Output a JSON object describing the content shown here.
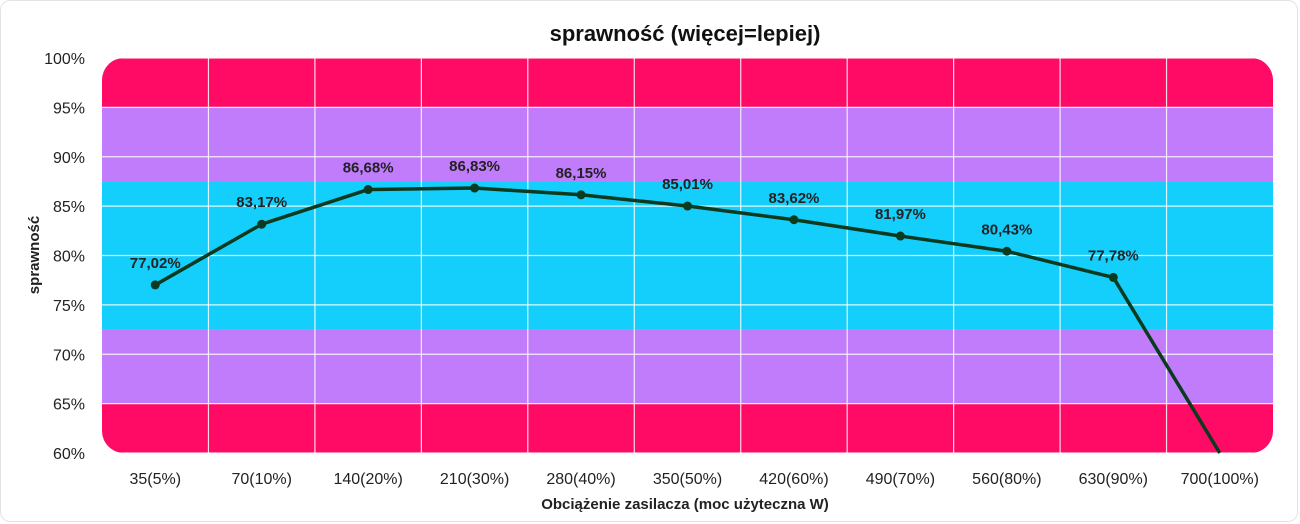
{
  "chart_data": {
    "type": "line",
    "title": "sprawność (więcej=lepiej)",
    "xlabel": "Obciążenie zasilacza (moc użyteczna W)",
    "ylabel": "sprawność",
    "categories": [
      "35(5%)",
      "70(10%)",
      "140(20%)",
      "210(30%)",
      "280(40%)",
      "350(50%)",
      "420(60%)",
      "490(70%)",
      "560(80%)",
      "630(90%)",
      "700(100%)"
    ],
    "series": [
      {
        "values": [
          77.02,
          83.17,
          86.68,
          86.83,
          86.15,
          85.01,
          83.62,
          81.97,
          80.43,
          77.78,
          60
        ],
        "labels": [
          "77,02%",
          "83,17%",
          "86,68%",
          "86,83%",
          "86,15%",
          "85,01%",
          "83,62%",
          "81,97%",
          "80,43%",
          "77,78%",
          ""
        ],
        "color": "#0b3a1e"
      }
    ],
    "ylim": [
      60,
      100
    ],
    "yticks": [
      "60%",
      "65%",
      "70%",
      "75%",
      "80%",
      "85%",
      "90%",
      "95%",
      "100%"
    ],
    "grid": true,
    "legend": "none",
    "bands": [
      {
        "from": 95,
        "to": 100,
        "color": "#ff0a64"
      },
      {
        "from": 87.5,
        "to": 95,
        "color": "#c17cfc"
      },
      {
        "from": 72.5,
        "to": 87.5,
        "color": "#14cefc"
      },
      {
        "from": 65,
        "to": 72.5,
        "color": "#c17cfc"
      },
      {
        "from": 60,
        "to": 65,
        "color": "#ff0a64"
      }
    ]
  }
}
